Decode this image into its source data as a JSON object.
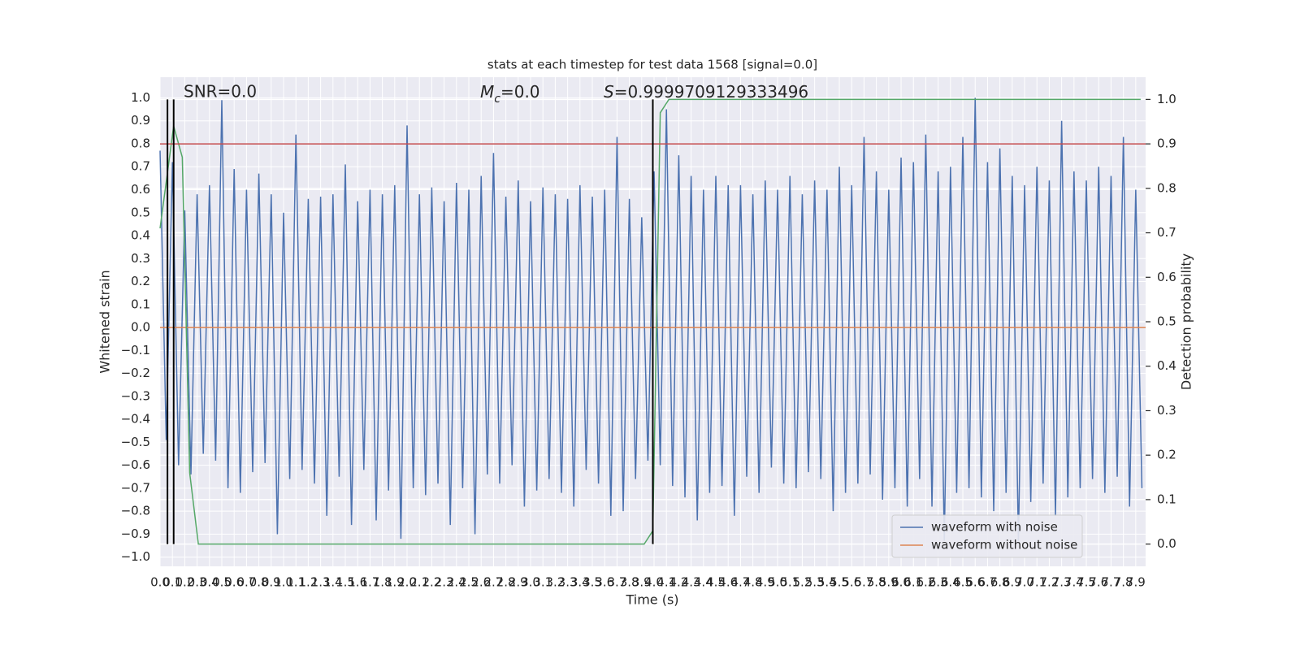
{
  "chart_data": {
    "type": "line",
    "title": "stats at each timestep for test data 1568 [signal=0.0]",
    "xlabel": "Time (s)",
    "ylabel": "Whitened strain",
    "y2label": "Detection probability",
    "annotations": [
      "SNR=0.0",
      {
        "symbol": "M",
        "subscript": "c",
        "text": "=0.0"
      },
      {
        "symbol": "S",
        "text": "=0.9999709129333496"
      }
    ],
    "xlim": [
      0,
      7.98
    ],
    "ylim": [
      -1.04,
      1.09
    ],
    "y2lim": [
      -0.05,
      1.05
    ],
    "xticks": [
      {
        "value": 0,
        "label": "0.0"
      },
      0.1,
      0.2,
      0.3,
      0.4,
      0.5,
      0.6,
      0.7,
      0.8,
      0.9,
      {
        "value": 1,
        "label": "1.0"
      },
      1.1,
      1.2,
      1.3,
      1.4,
      1.5,
      1.6,
      1.7,
      1.8,
      1.9,
      {
        "value": 2,
        "label": "2.0"
      },
      2.1,
      2.2,
      2.3,
      2.4,
      2.5,
      2.6,
      2.7,
      2.8,
      2.9,
      {
        "value": 3,
        "label": "3.0"
      },
      3.1,
      3.2,
      3.3,
      3.4,
      3.5,
      3.6,
      3.7,
      3.8,
      3.9,
      {
        "value": 4,
        "label": "4.0"
      },
      4.1,
      4.2,
      4.3,
      4.4,
      4.5,
      4.6,
      4.7,
      4.8,
      4.9,
      {
        "value": 5,
        "label": "5.0"
      },
      5.1,
      5.2,
      5.3,
      5.4,
      5.5,
      5.6,
      5.7,
      5.8,
      5.9,
      {
        "value": 6,
        "label": "6.0"
      },
      6.1,
      6.2,
      6.3,
      6.4,
      6.5,
      6.6,
      6.7,
      6.8,
      6.9,
      {
        "value": 7,
        "label": "7.0"
      },
      7.1,
      7.2,
      7.3,
      7.4,
      7.5,
      7.6,
      7.7,
      7.8,
      7.9
    ],
    "yticks": [
      {
        "value": -1,
        "label": "−1.0"
      },
      {
        "value": -0.9,
        "label": "−0.9"
      },
      {
        "value": -0.8,
        "label": "−0.8"
      },
      {
        "value": -0.7,
        "label": "−0.7"
      },
      {
        "value": -0.6,
        "label": "−0.6"
      },
      {
        "value": -0.5,
        "label": "−0.5"
      },
      {
        "value": -0.4,
        "label": "−0.4"
      },
      {
        "value": -0.3,
        "label": "−0.3"
      },
      {
        "value": -0.2,
        "label": "−0.2"
      },
      {
        "value": -0.1,
        "label": "−0.1"
      },
      {
        "value": 0,
        "label": "0.0"
      },
      0.1,
      0.2,
      0.3,
      0.4,
      0.5,
      0.6,
      0.7,
      0.8,
      0.9,
      {
        "value": 1,
        "label": "1.0"
      }
    ],
    "y2ticks": [
      {
        "value": 0,
        "label": "0.0"
      },
      0.1,
      0.2,
      0.3,
      0.4,
      0.5,
      0.6,
      0.7,
      0.8,
      0.9,
      {
        "value": 1,
        "label": "1.0"
      }
    ],
    "grid": true,
    "legend_loc": "lower right",
    "threshold": {
      "value": 0.9,
      "axis": "y2",
      "color": "#c44e52"
    },
    "vlines": {
      "values": [
        0.06,
        0.11,
        3.99
      ],
      "color": "#000000",
      "ymin": 0,
      "ymax": 1,
      "axis": "y2"
    },
    "series": [
      {
        "name": "waveform with noise",
        "color": "#4c72b0",
        "x": [
          0,
          0.05,
          0.1,
          0.15,
          0.2,
          0.25,
          0.3,
          0.35,
          0.4,
          0.45,
          0.5,
          0.55,
          0.6,
          0.65,
          0.7,
          0.75,
          0.8,
          0.85,
          0.9,
          0.95,
          1,
          1.05,
          1.1,
          1.15,
          1.2,
          1.25,
          1.3,
          1.35,
          1.4,
          1.45,
          1.5,
          1.55,
          1.6,
          1.65,
          1.7,
          1.75,
          1.8,
          1.85,
          1.9,
          1.95,
          2,
          2.05,
          2.1,
          2.15,
          2.2,
          2.25,
          2.3,
          2.35,
          2.4,
          2.45,
          2.5,
          2.55,
          2.6,
          2.65,
          2.7,
          2.75,
          2.8,
          2.85,
          2.9,
          2.95,
          3,
          3.05,
          3.1,
          3.15,
          3.2,
          3.25,
          3.3,
          3.35,
          3.4,
          3.45,
          3.5,
          3.55,
          3.6,
          3.65,
          3.7,
          3.75,
          3.8,
          3.85,
          3.9,
          3.95,
          4,
          4.05,
          4.1,
          4.15,
          4.2,
          4.25,
          4.3,
          4.35,
          4.4,
          4.45,
          4.5,
          4.55,
          4.6,
          4.65,
          4.7,
          4.75,
          4.8,
          4.85,
          4.9,
          4.95,
          5,
          5.05,
          5.1,
          5.15,
          5.2,
          5.25,
          5.3,
          5.35,
          5.4,
          5.45,
          5.5,
          5.55,
          5.6,
          5.65,
          5.7,
          5.75,
          5.8,
          5.85,
          5.9,
          5.95,
          6,
          6.05,
          6.1,
          6.15,
          6.2,
          6.25,
          6.3,
          6.35,
          6.4,
          6.45,
          6.5,
          6.55,
          6.6,
          6.65,
          6.7,
          6.75,
          6.8,
          6.85,
          6.9,
          6.95,
          7,
          7.05,
          7.1,
          7.15,
          7.2,
          7.25,
          7.3,
          7.35,
          7.4,
          7.45,
          7.5,
          7.55,
          7.6,
          7.65,
          7.7,
          7.75,
          7.8,
          7.85,
          7.9,
          7.95
        ],
        "values": [
          0.77,
          -0.49,
          0.72,
          -0.6,
          0.51,
          -0.64,
          0.58,
          -0.55,
          0.62,
          -0.58,
          0.99,
          -0.7,
          0.69,
          -0.72,
          0.6,
          -0.63,
          0.67,
          -0.59,
          0.58,
          -0.9,
          0.5,
          -0.66,
          0.84,
          -0.62,
          0.56,
          -0.68,
          0.57,
          -0.82,
          0.58,
          -0.65,
          0.71,
          -0.86,
          0.55,
          -0.62,
          0.6,
          -0.84,
          0.58,
          -0.71,
          0.62,
          -0.92,
          0.88,
          -0.7,
          0.58,
          -0.73,
          0.61,
          -0.68,
          0.55,
          -0.86,
          0.63,
          -0.7,
          0.6,
          -0.9,
          0.66,
          -0.64,
          0.76,
          -0.68,
          0.57,
          -0.6,
          0.64,
          -0.78,
          0.55,
          -0.71,
          0.61,
          -0.66,
          0.58,
          -0.72,
          0.56,
          -0.78,
          0.62,
          -0.62,
          0.57,
          -0.68,
          0.6,
          -0.82,
          0.83,
          -0.8,
          0.56,
          -0.66,
          0.48,
          -0.58,
          0.68,
          -0.6,
          0.95,
          -0.69,
          0.75,
          -0.74,
          0.66,
          -0.84,
          0.6,
          -0.72,
          0.66,
          -0.69,
          0.62,
          -0.82,
          0.62,
          -0.65,
          0.58,
          -0.72,
          0.64,
          -0.61,
          0.6,
          -0.68,
          0.66,
          -0.7,
          0.58,
          -0.63,
          0.64,
          -0.66,
          0.6,
          -0.8,
          0.7,
          -0.72,
          0.62,
          -0.68,
          0.83,
          -0.64,
          0.68,
          -0.75,
          0.6,
          -0.7,
          0.74,
          -0.78,
          0.72,
          -0.66,
          0.84,
          -0.78,
          0.68,
          -0.93,
          0.7,
          -0.72,
          0.83,
          -0.7,
          1.0,
          -0.74,
          0.72,
          -0.8,
          0.78,
          -0.72,
          0.66,
          -0.93,
          0.62,
          -0.76,
          0.7,
          -0.68,
          0.64,
          -0.82,
          0.9,
          -0.74,
          0.68,
          -0.7,
          0.64,
          -0.66,
          0.7,
          -0.72,
          0.66,
          -0.65,
          0.83,
          -0.78,
          0.6,
          -0.7
        ]
      },
      {
        "name": "waveform without noise",
        "color": "#dd8452",
        "x": [
          0,
          7.98
        ],
        "values": [
          0,
          0
        ]
      },
      {
        "color": "#55a868",
        "axis": "y2",
        "x": [
          0,
          0.11,
          0.18,
          0.24,
          0.31,
          3.92,
          3.99,
          4.05,
          4.12,
          7.94
        ],
        "values": [
          0.71,
          0.94,
          0.87,
          0.16,
          0,
          0,
          0.03,
          0.97,
          1.0,
          1.0
        ]
      }
    ]
  }
}
